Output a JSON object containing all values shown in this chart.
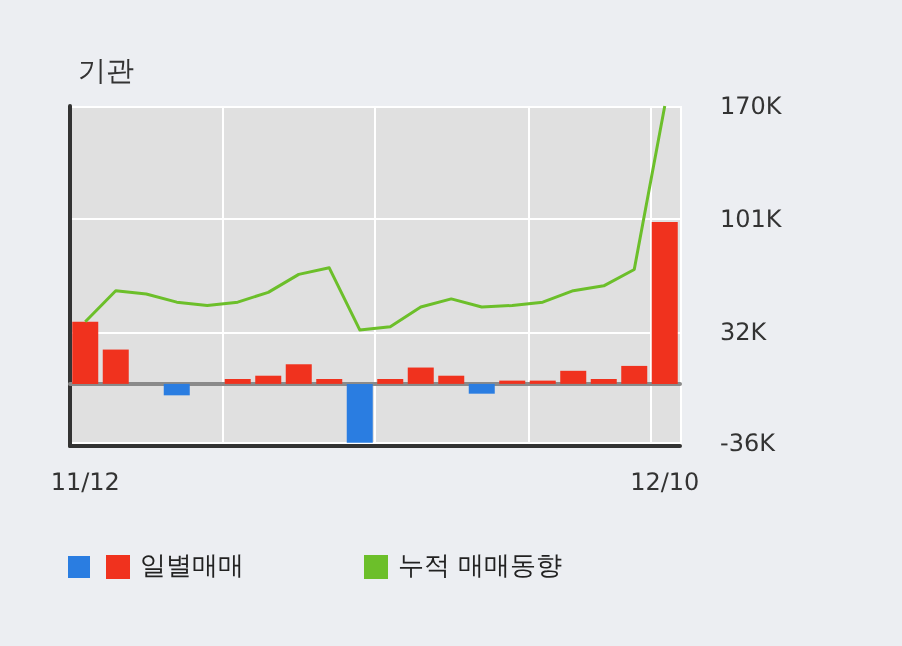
{
  "chart_data": {
    "type": "bar",
    "title": "기관",
    "categories": [
      "11/12",
      null,
      null,
      null,
      null,
      null,
      null,
      null,
      null,
      null,
      null,
      null,
      null,
      null,
      null,
      null,
      null,
      null,
      null,
      "12/10"
    ],
    "series": [
      {
        "name": "일별매매",
        "colors": [
          "#f0321e",
          "#f0321e",
          "#f0321e",
          "#2a7de1",
          "#f0321e",
          "#f0321e",
          "#f0321e",
          "#f0321e",
          "#f0321e",
          "#2a7de1",
          "#f0321e",
          "#f0321e",
          "#f0321e",
          "#2a7de1",
          "#f0321e",
          "#f0321e",
          "#f0321e",
          "#f0321e",
          "#f0321e",
          "#f0321e"
        ],
        "values": [
          38000,
          21000,
          0,
          -7000,
          0,
          3000,
          5000,
          12000,
          3000,
          -36000,
          3000,
          10000,
          5000,
          -6000,
          2000,
          2000,
          8000,
          3000,
          11000,
          99000
        ]
      },
      {
        "name": "누적 매매동향",
        "type": "line",
        "color": "#6cbf2a",
        "values": [
          38000,
          57000,
          55000,
          50000,
          48000,
          50000,
          56000,
          67000,
          71000,
          33000,
          35000,
          47000,
          52000,
          47000,
          48000,
          50000,
          57000,
          60000,
          70000,
          170000
        ]
      }
    ],
    "ylim": [
      -38000,
      170000
    ],
    "yticks": [
      {
        "value": -36000,
        "label": "-36K"
      },
      {
        "value": 32000,
        "label": "32K"
      },
      {
        "value": 101000,
        "label": "101K"
      },
      {
        "value": 170000,
        "label": "170K"
      }
    ],
    "grid": true,
    "legend": "bottom left",
    "marker": "none"
  }
}
